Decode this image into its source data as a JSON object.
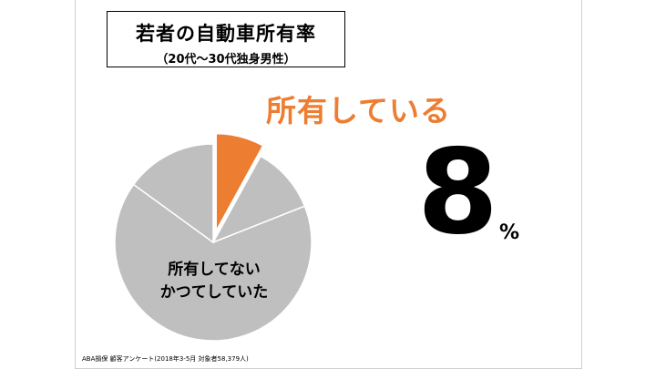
{
  "header": {
    "title": "若者の自動車所有率",
    "subtitle": "（20代～30代独身男性）"
  },
  "highlight": {
    "label": "所有している",
    "value": "8",
    "unit": "%"
  },
  "pie_labels": {
    "line1": "所有してない",
    "line2": "かつてしていた"
  },
  "source": "ABA損保 顧客アンケート(2018年3-5月 対象者58,379人)",
  "colors": {
    "owning": "#ED7D31",
    "other": "#BFBFBF"
  },
  "chart_data": {
    "type": "pie",
    "title": "若者の自動車所有率",
    "slices": [
      {
        "name": "所有している",
        "value": 8,
        "color": "#ED7D31",
        "exploded": true
      },
      {
        "name": "",
        "value": 11,
        "color": "#BFBFBF",
        "exploded": false
      },
      {
        "name": "所有してない",
        "value": 66,
        "color": "#BFBFBF",
        "exploded": false
      },
      {
        "name": "かつてしていた",
        "value": 15,
        "color": "#BFBFBF",
        "exploded": false
      }
    ]
  }
}
